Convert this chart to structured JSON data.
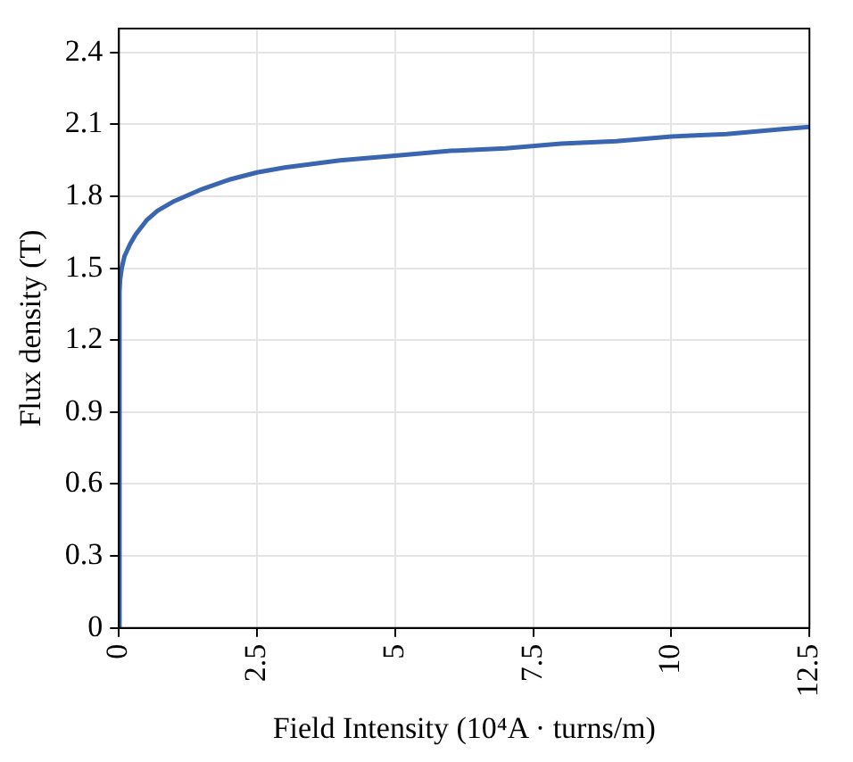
{
  "chart_data": {
    "type": "line",
    "xlabel": "Field Intensity (10⁴A · turns/m)",
    "ylabel": "Flux density (T)",
    "series": [
      {
        "color": "#3a65b0",
        "x": [
          0,
          0.01,
          0.02,
          0.05,
          0.1,
          0.2,
          0.3,
          0.5,
          0.7,
          1.0,
          1.5,
          2.0,
          2.5,
          3.0,
          4.0,
          5.0,
          6.0,
          7.0,
          8.0,
          9.0,
          10.0,
          11.0,
          12.0,
          12.5
        ],
        "values": [
          0,
          1.4,
          1.45,
          1.5,
          1.55,
          1.6,
          1.64,
          1.7,
          1.74,
          1.78,
          1.83,
          1.87,
          1.9,
          1.92,
          1.95,
          1.97,
          1.99,
          2.0,
          2.02,
          2.03,
          2.05,
          2.06,
          2.08,
          2.09
        ]
      }
    ],
    "xlim": [
      0,
      12.5
    ],
    "xticks": [
      0,
      2.5,
      5,
      7.5,
      10,
      12.5
    ],
    "ylim": [
      0,
      2.5
    ],
    "yticks": [
      0,
      0.3,
      0.6,
      0.9,
      1.2,
      1.5,
      1.8,
      2.1,
      2.4
    ],
    "grid": true,
    "marker": "none",
    "line_style": "solid",
    "legend": false
  }
}
